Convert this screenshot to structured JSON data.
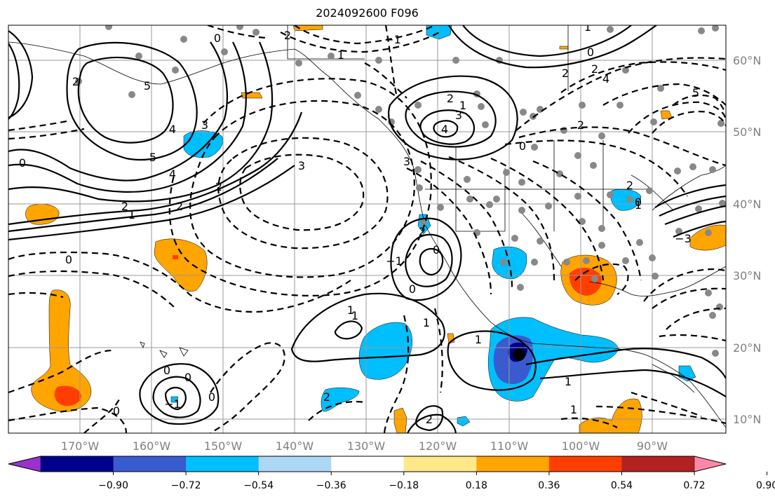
{
  "title": "2024092600 F096",
  "lat_labels": [
    "60°N",
    "50°N",
    "40°N",
    "30°N",
    "20°N",
    "10°N"
  ],
  "lon_labels": [
    "170°W",
    "160°W",
    "150°W",
    "140°W",
    "130°W",
    "120°W",
    "110°W",
    "100°W",
    "90°W"
  ],
  "colorbar": {
    "colors": [
      "#9932CC",
      "#00008B",
      "#3A5BD0",
      "#00BFFF",
      "#ADD8F5",
      "#FFFFFF",
      "#FFE88A",
      "#FFA500",
      "#FF3E00",
      "#B22222",
      "#FF88AA"
    ],
    "tick_labels": [
      "−0.90",
      "−0.72",
      "−0.54",
      "−0.36",
      "−0.18",
      "0.18",
      "0.36",
      "0.54",
      "0.72",
      "0.90"
    ]
  },
  "contour_labels": [
    "0",
    "2",
    "1",
    "−1",
    "2",
    "4",
    "5",
    "3",
    "0",
    "5",
    "4",
    "3",
    "2",
    "2",
    "1",
    "2",
    "0",
    "0",
    "3",
    "0",
    "2",
    "1",
    "3",
    "4",
    "2",
    "0",
    "2",
    "1",
    "4",
    "5",
    "2",
    "0",
    "2",
    "1",
    "2",
    "0",
    "−3",
    "−1",
    "0",
    "1",
    "1",
    "1",
    "1",
    "−1",
    "0",
    "0",
    "0",
    "2",
    "1",
    "2",
    "1"
  ],
  "shading_colors": {
    "neg_light": "#00BFFF",
    "neg_mid": "#3A5BD0",
    "neg_dark": "#00008B",
    "pos_orange": "#FFA500",
    "pos_red": "#FF3E00"
  }
}
